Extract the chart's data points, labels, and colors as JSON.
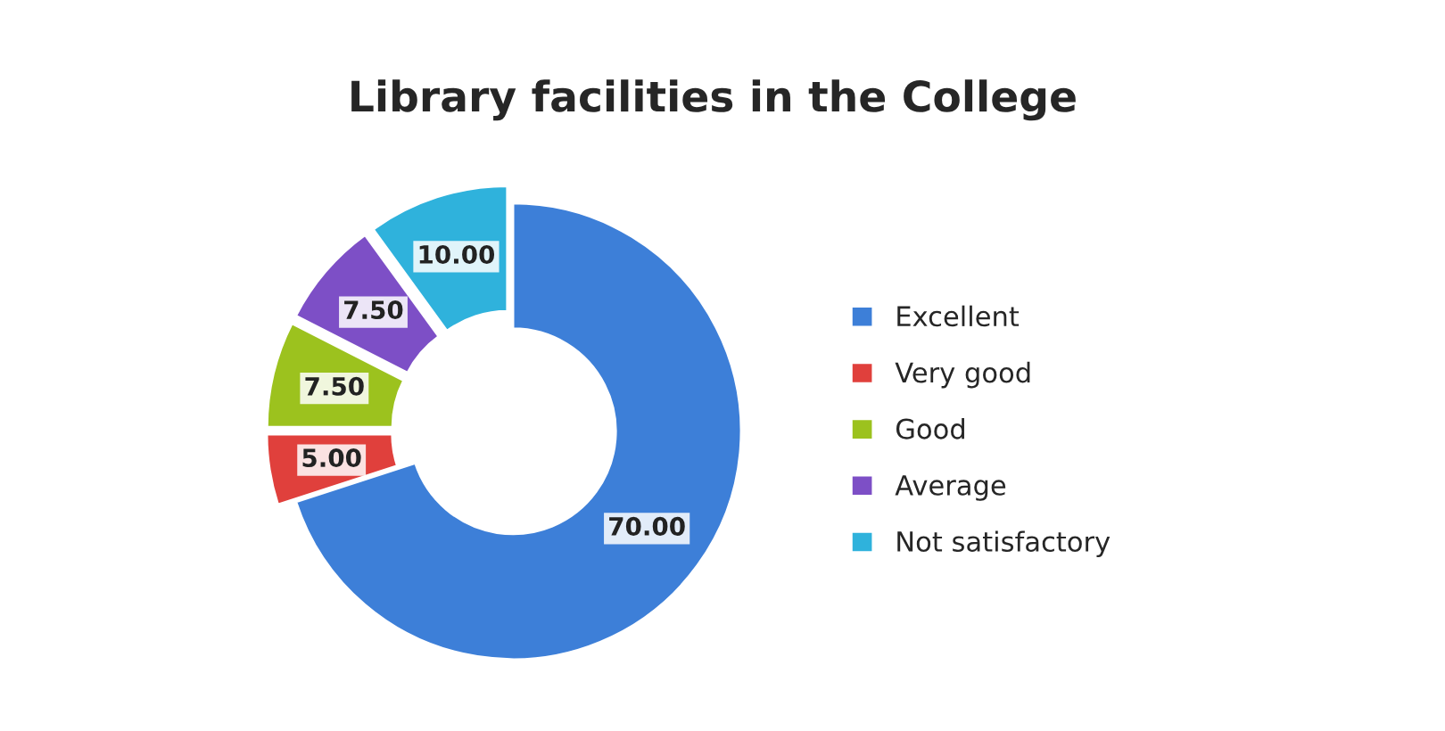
{
  "chart_data": {
    "type": "donut",
    "title": "Library facilities in the College",
    "categories": [
      "Excellent",
      "Very good",
      "Good",
      "Average",
      "Not satisfactory"
    ],
    "values": [
      70,
      5,
      7.5,
      7.5,
      10
    ],
    "value_labels": [
      "70.00",
      "5.00",
      "7.50",
      "7.50",
      "10.00"
    ],
    "colors": [
      "#3d7fd8",
      "#e0403c",
      "#9cc21e",
      "#7d4fc6",
      "#2fb2dc"
    ],
    "legend": "right"
  }
}
